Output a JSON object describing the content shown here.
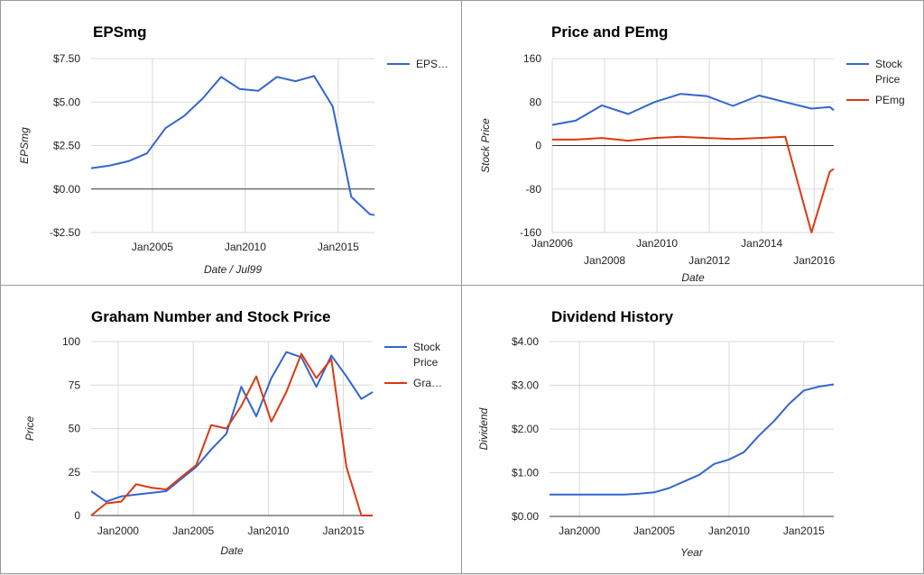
{
  "colors": {
    "blue": "#3366cc",
    "red": "#dc3912"
  },
  "chart_data": [
    {
      "type": "line",
      "title": "EPSmg",
      "xlabel": "Date / Jul99",
      "ylabel": "EPSmg",
      "ylim": [
        -2.5,
        7.5
      ],
      "xlim": [
        2001.7,
        2016.95
      ],
      "grid": true,
      "legend_position": "right",
      "y_ticks": [
        {
          "value": 7.5,
          "label": "$7.50"
        },
        {
          "value": 5.0,
          "label": "$5.00"
        },
        {
          "value": 2.5,
          "label": "$2.50"
        },
        {
          "value": 0.0,
          "label": "$0.00"
        },
        {
          "value": -2.5,
          "label": "-$2.50"
        }
      ],
      "x_ticks": [
        {
          "value": 2005,
          "label": "Jan2005"
        },
        {
          "value": 2010,
          "label": "Jan2010"
        },
        {
          "value": 2015,
          "label": "Jan2015"
        }
      ],
      "series": [
        {
          "name": "EPS…",
          "color": "#3366cc",
          "x": [
            2001.7,
            2002.7,
            2003.7,
            2004.7,
            2005.7,
            2006.7,
            2007.7,
            2008.7,
            2009.7,
            2010.7,
            2011.7,
            2012.7,
            2013.7,
            2014.7,
            2015.7,
            2016.7,
            2016.95
          ],
          "y": [
            1.2,
            1.35,
            1.6,
            2.05,
            3.5,
            4.2,
            5.2,
            6.45,
            5.75,
            5.65,
            6.45,
            6.2,
            6.5,
            4.75,
            -0.45,
            -1.45,
            -1.5
          ]
        }
      ]
    },
    {
      "type": "line",
      "title": "Price and PEmg",
      "xlabel": "Date",
      "ylabel": "Stock Price",
      "ylim": [
        -160,
        160
      ],
      "xlim": [
        2006.0,
        2016.75
      ],
      "grid": true,
      "legend_position": "right",
      "y_ticks": [
        {
          "value": 160,
          "label": "160"
        },
        {
          "value": 80,
          "label": "80"
        },
        {
          "value": 0,
          "label": "0"
        },
        {
          "value": -80,
          "label": "-80"
        },
        {
          "value": -160,
          "label": "-160"
        }
      ],
      "x_ticks": [
        {
          "value": 2006,
          "label": "Jan2006",
          "row": 0
        },
        {
          "value": 2008,
          "label": "Jan2008",
          "row": 1
        },
        {
          "value": 2010,
          "label": "Jan2010",
          "row": 0
        },
        {
          "value": 2012,
          "label": "Jan2012",
          "row": 1
        },
        {
          "value": 2014,
          "label": "Jan2014",
          "row": 0
        },
        {
          "value": 2016,
          "label": "Jan2016",
          "row": 1
        }
      ],
      "series": [
        {
          "name": "Stock Price",
          "color": "#3366cc",
          "x": [
            2006.0,
            2006.9,
            2007.9,
            2008.9,
            2009.9,
            2010.9,
            2011.9,
            2012.9,
            2013.9,
            2014.9,
            2015.9,
            2016.6,
            2016.75
          ],
          "y": [
            38,
            46,
            74,
            58,
            80,
            95,
            91,
            73,
            92,
            80,
            68,
            71,
            65
          ]
        },
        {
          "name": "PEmg",
          "color": "#dc3912",
          "x": [
            2006.0,
            2006.9,
            2007.9,
            2008.9,
            2009.9,
            2010.9,
            2011.9,
            2012.9,
            2013.9,
            2014.9,
            2015.9,
            2016.6,
            2016.75
          ],
          "y": [
            11,
            11,
            14,
            9,
            14,
            16,
            14,
            12,
            14,
            16,
            -160,
            -48,
            -43
          ]
        }
      ]
    },
    {
      "type": "line",
      "title": "Graham Number and Stock Price",
      "xlabel": "Date",
      "ylabel": "Price",
      "ylim": [
        0,
        100
      ],
      "xlim": [
        1998.2,
        2016.95
      ],
      "grid": true,
      "legend_position": "right",
      "y_ticks": [
        {
          "value": 100,
          "label": "100"
        },
        {
          "value": 75,
          "label": "75"
        },
        {
          "value": 50,
          "label": "50"
        },
        {
          "value": 25,
          "label": "25"
        },
        {
          "value": 0,
          "label": "0"
        }
      ],
      "x_ticks": [
        {
          "value": 2000,
          "label": "Jan2000"
        },
        {
          "value": 2005,
          "label": "Jan2005"
        },
        {
          "value": 2010,
          "label": "Jan2010"
        },
        {
          "value": 2015,
          "label": "Jan2015"
        }
      ],
      "series": [
        {
          "name": "Stock Price",
          "color": "#3366cc",
          "x": [
            1998.2,
            1999.2,
            2000.2,
            2001.2,
            2002.2,
            2003.2,
            2004.2,
            2005.2,
            2006.2,
            2007.2,
            2008.2,
            2009.2,
            2010.2,
            2011.2,
            2012.2,
            2013.2,
            2014.2,
            2015.2,
            2016.2,
            2016.95
          ],
          "y": [
            14,
            8,
            11,
            12,
            13,
            14,
            21,
            28,
            38,
            47,
            74,
            57,
            79,
            94,
            91,
            74,
            92,
            80,
            67,
            71
          ]
        },
        {
          "name": "Gra…",
          "color": "#dc3912",
          "x": [
            1998.2,
            1999.2,
            2000.2,
            2001.2,
            2002.2,
            2003.2,
            2004.2,
            2005.2,
            2006.2,
            2007.2,
            2008.2,
            2009.2,
            2010.2,
            2011.2,
            2012.2,
            2013.2,
            2014.2,
            2015.2,
            2016.2,
            2016.95
          ],
          "y": [
            0,
            7,
            8,
            18,
            16,
            15,
            22,
            29,
            52,
            50,
            63,
            80,
            54,
            71,
            93,
            79,
            90,
            28,
            0,
            0
          ]
        }
      ]
    },
    {
      "type": "line",
      "title": "Dividend History",
      "xlabel": "Year",
      "ylabel": "Dividend",
      "ylim": [
        0,
        4
      ],
      "xlim": [
        1998.0,
        2017.0
      ],
      "grid": true,
      "legend_position": "none",
      "y_ticks": [
        {
          "value": 4,
          "label": "$4.00"
        },
        {
          "value": 3,
          "label": "$3.00"
        },
        {
          "value": 2,
          "label": "$2.00"
        },
        {
          "value": 1,
          "label": "$1.00"
        },
        {
          "value": 0,
          "label": "$0.00"
        }
      ],
      "x_ticks": [
        {
          "value": 2000,
          "label": "Jan2000"
        },
        {
          "value": 2005,
          "label": "Jan2005"
        },
        {
          "value": 2010,
          "label": "Jan2010"
        },
        {
          "value": 2015,
          "label": "Jan2015"
        }
      ],
      "series": [
        {
          "name": "",
          "color": "#3366cc",
          "x": [
            1998,
            1999,
            2000,
            2001,
            2002,
            2003,
            2004,
            2005,
            2006,
            2007,
            2008,
            2009,
            2010,
            2011,
            2012,
            2013,
            2014,
            2015,
            2016,
            2017
          ],
          "y": [
            0.5,
            0.5,
            0.5,
            0.5,
            0.5,
            0.5,
            0.52,
            0.55,
            0.65,
            0.8,
            0.95,
            1.2,
            1.3,
            1.47,
            1.85,
            2.18,
            2.57,
            2.88,
            2.97,
            3.02
          ]
        }
      ]
    }
  ]
}
